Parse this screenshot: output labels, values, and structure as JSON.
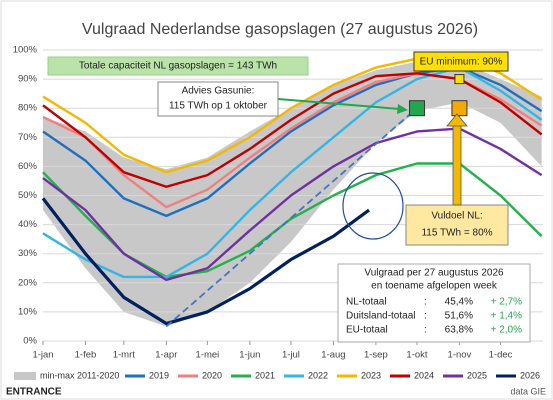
{
  "chart_data": {
    "type": "line",
    "title": "Vulgraad Nederlandse gasopslagen (27 augustus 2026)",
    "xlim": [
      0,
      365
    ],
    "xticks": [
      {
        "value": 0,
        "label": "1-jan"
      },
      {
        "value": 31,
        "label": "1-feb"
      },
      {
        "value": 59,
        "label": "1-mrt"
      },
      {
        "value": 90,
        "label": "1-apr"
      },
      {
        "value": 120,
        "label": "1-mei"
      },
      {
        "value": 151,
        "label": "1-jun"
      },
      {
        "value": 181,
        "label": "1-jul"
      },
      {
        "value": 212,
        "label": "1-aug"
      },
      {
        "value": 243,
        "label": "1-sep"
      },
      {
        "value": 273,
        "label": "1-okt"
      },
      {
        "value": 304,
        "label": "1-nov"
      },
      {
        "value": 334,
        "label": "1-dec"
      }
    ],
    "ylim": [
      0,
      100
    ],
    "yticks": [
      {
        "value": 0,
        "label": "0%"
      },
      {
        "value": 10,
        "label": "10%"
      },
      {
        "value": 20,
        "label": "20%"
      },
      {
        "value": 30,
        "label": "30%"
      },
      {
        "value": 40,
        "label": "40%"
      },
      {
        "value": 50,
        "label": "50%"
      },
      {
        "value": 60,
        "label": "60%"
      },
      {
        "value": 70,
        "label": "70%"
      },
      {
        "value": 80,
        "label": "80%"
      },
      {
        "value": 90,
        "label": "90%"
      },
      {
        "value": 100,
        "label": "100%"
      }
    ],
    "grid": true,
    "x": [
      0,
      31,
      59,
      90,
      120,
      151,
      181,
      212,
      243,
      273,
      304,
      334,
      364
    ],
    "band": {
      "name": "min-max 2011-2020",
      "color": "#c8c8c8",
      "high": [
        77,
        72,
        63,
        59,
        63,
        72,
        80,
        88,
        93,
        96,
        96,
        90,
        84
      ],
      "low": [
        45,
        25,
        10,
        5,
        10,
        20,
        34,
        52,
        68,
        79,
        82,
        75,
        60
      ]
    },
    "series": [
      {
        "name": "2019",
        "color": "#1f6fbf",
        "values": [
          72,
          62,
          49,
          43,
          49,
          61,
          72,
          81,
          88,
          92,
          94,
          88,
          79
        ]
      },
      {
        "name": "2020",
        "color": "#f08080",
        "values": [
          77,
          70,
          57,
          46,
          52,
          63,
          73,
          82,
          89,
          92,
          90,
          83,
          74
        ]
      },
      {
        "name": "2021",
        "color": "#22b14c",
        "values": [
          58,
          43,
          30,
          22,
          24,
          31,
          42,
          50,
          57,
          61,
          61,
          50,
          36
        ]
      },
      {
        "name": "2022",
        "color": "#33b5e5",
        "values": [
          37,
          28,
          22,
          22,
          30,
          45,
          58,
          70,
          82,
          90,
          94,
          86,
          76
        ]
      },
      {
        "name": "2023",
        "color": "#f5b800",
        "values": [
          84,
          75,
          64,
          58,
          62,
          70,
          80,
          88,
          94,
          97,
          98,
          92,
          83
        ]
      },
      {
        "name": "2024",
        "color": "#c00000",
        "values": [
          81,
          70,
          58,
          53,
          57,
          66,
          76,
          85,
          91,
          92,
          90,
          82,
          71
        ]
      },
      {
        "name": "2025",
        "color": "#7030a0",
        "values": [
          56,
          45,
          30,
          21,
          25,
          38,
          50,
          60,
          68,
          72,
          73,
          66,
          57
        ]
      },
      {
        "name": "2026",
        "color": "#002060",
        "x": [
          0,
          31,
          59,
          90,
          120,
          151,
          181,
          212,
          238
        ],
        "values": [
          49,
          30,
          15,
          6,
          10,
          18,
          28,
          36,
          45
        ]
      }
    ],
    "target_line": {
      "color": "#4472c4",
      "x": [
        90,
        273
      ],
      "values": [
        5,
        80
      ]
    },
    "markers": [
      {
        "x": 273,
        "y": 80,
        "color": "#22a84c"
      },
      {
        "x": 304,
        "y": 80,
        "color": "#f5a800"
      },
      {
        "x": 304,
        "y": 90,
        "color": "#ffe000"
      }
    ],
    "annotations": {
      "capacity": "Totale capaciteit NL gasopslagen = 143 TWh",
      "advice": [
        "Advies Gasunie:",
        "115 TWh op 1 oktober"
      ],
      "eu_min": "EU minimum: 90%",
      "target": [
        "Vuldoel NL:",
        "115 TWh = 80%"
      ]
    },
    "summary": {
      "title": [
        "Vulgraad per 27 augustus 2026",
        "en toename afgelopen week"
      ],
      "rows": [
        [
          "NL-totaal",
          ":",
          "45,4%",
          "+ 2,7%"
        ],
        [
          "Duitsland-totaal",
          ":",
          "51,6%",
          "+ 1,4%"
        ],
        [
          "EU-totaal",
          ":",
          "63,8%",
          "+ 2,0%"
        ]
      ]
    },
    "footer": {
      "logo": "ENTRANCE",
      "source": "data GIE"
    }
  }
}
